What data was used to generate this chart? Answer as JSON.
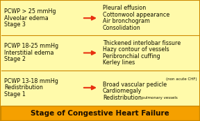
{
  "title": "Stage of Congestive Heart Failure",
  "title_bg": "#F5A000",
  "title_color": "#1a0d00",
  "body_bg": "#FFFAAA",
  "border_color": "#CC8800",
  "arrow_color": "#E83010",
  "divider_color": "#CC8800",
  "stages": [
    {
      "left_lines": [
        "Stage 1",
        "Redistribution",
        "PCWP 13-18 mmHg"
      ],
      "right_main": "Redistribution",
      "right_small_inline": "pulmonary vessels",
      "right_rest": [
        "Cardiomegaly",
        "Broad vascular pedicle"
      ],
      "right_note": "(non acute CHF)"
    },
    {
      "left_lines": [
        "Stage 2",
        "Interstitial edema",
        "PCWP 18-25 mmHg"
      ],
      "right_main": null,
      "right_small_inline": null,
      "right_rest": [
        "Kerley lines",
        "Peribronchial cuffing",
        "Hazy contour of vessels",
        "Thickened interlobar fissure"
      ],
      "right_note": null
    },
    {
      "left_lines": [
        "Stage 3",
        "Alveolar edema",
        "PCWP > 25 mmHg"
      ],
      "right_main": null,
      "right_small_inline": null,
      "right_rest": [
        "Consolidation",
        "Air bronchogram",
        "Cottonwool appearance",
        "Pleural effusion"
      ],
      "right_note": null
    }
  ],
  "figsize": [
    2.88,
    1.75
  ],
  "dpi": 100
}
